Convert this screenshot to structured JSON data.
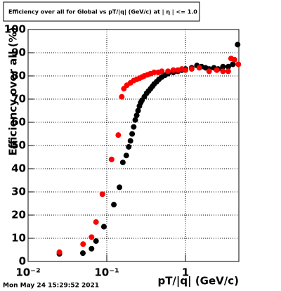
{
  "chart_data": {
    "type": "scatter",
    "title": "Efficiency over all for Global vs pT/|q| (GeV/c) at | η | <= 1.0",
    "x_label": "pT/|q| (GeV/c)",
    "y_label": "Efficiency over all (%)",
    "timestamp": "Mon May 24 15:29:52 2021",
    "x_log": true,
    "grid": true,
    "xlim": [
      0.01,
      4.77
    ],
    "ylim": [
      0,
      100
    ],
    "xticks": [
      {
        "value": 0.01,
        "label": "10⁻²"
      },
      {
        "value": 0.1,
        "label": "10⁻¹"
      },
      1
    ],
    "yticks": [
      0,
      10,
      20,
      30,
      40,
      50,
      60,
      70,
      80,
      90,
      100
    ],
    "series": [
      {
        "color": "#000000",
        "x": [
          0.025,
          0.0497,
          0.064,
          0.073,
          0.092,
          0.123,
          0.145,
          0.16,
          0.177,
          0.19,
          0.2,
          0.21,
          0.22,
          0.23,
          0.24,
          0.25,
          0.26,
          0.27,
          0.28,
          0.3,
          0.32,
          0.34,
          0.36,
          0.38,
          0.4,
          0.43,
          0.46,
          0.5,
          0.55,
          0.6,
          0.7,
          0.8,
          0.9,
          1.0,
          1.2,
          1.4,
          1.6,
          1.8,
          2.0,
          2.3,
          2.6,
          3.0,
          3.5,
          4.0,
          4.6
        ],
        "values": [
          3.3,
          3.6,
          5.5,
          8.8,
          15,
          24.5,
          32,
          42.7,
          45.7,
          49.4,
          52,
          55,
          58,
          61,
          63,
          65,
          67,
          68.5,
          69.5,
          71,
          72.5,
          73.5,
          74.5,
          75.5,
          76.5,
          77.5,
          78.5,
          79.5,
          80.3,
          81,
          81.5,
          82,
          82.5,
          83,
          83.5,
          84.5,
          84,
          83.5,
          83,
          83.5,
          83,
          84,
          84,
          85,
          93.5
        ]
      },
      {
        "color": "#ff0000",
        "x": [
          0.025,
          0.05,
          0.064,
          0.073,
          0.088,
          0.115,
          0.14,
          0.155,
          0.165,
          0.18,
          0.2,
          0.22,
          0.24,
          0.26,
          0.28,
          0.3,
          0.33,
          0.36,
          0.4,
          0.45,
          0.5,
          0.6,
          0.7,
          0.8,
          0.9,
          1.0,
          1.2,
          1.5,
          2.0,
          2.5,
          3.0,
          3.5,
          3.8,
          4.2,
          4.7
        ],
        "values": [
          4,
          7.5,
          10.5,
          17,
          29,
          44,
          54.5,
          71,
          74.5,
          76,
          77,
          78,
          78.5,
          79,
          79.5,
          80,
          80.5,
          81,
          81.5,
          81.5,
          82,
          82,
          82.5,
          82.5,
          83,
          82.5,
          83,
          83.5,
          82,
          82.5,
          82,
          82,
          87.5,
          87,
          85
        ]
      }
    ]
  }
}
